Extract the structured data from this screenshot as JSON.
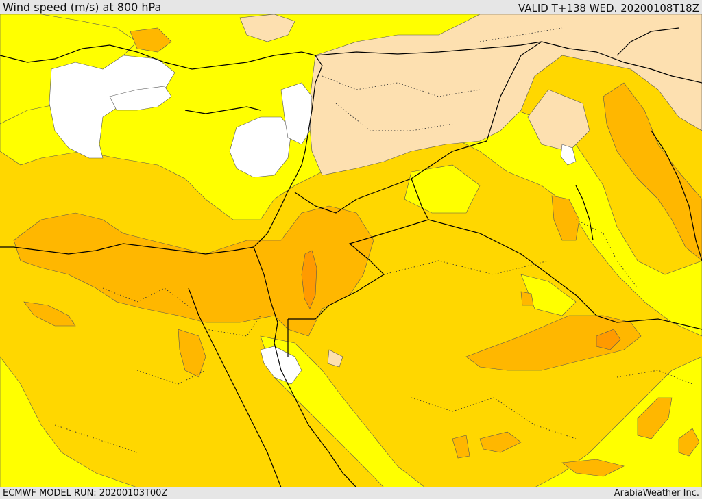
{
  "header": {
    "title": "Wind speed (m/s) at 800 hPa",
    "valid_time": "VALID T+138 WED. 20200108T18Z"
  },
  "footer": {
    "model_run": "ECMWF MODEL RUN: 20200103T00Z",
    "credit": "ArabiaWeather Inc."
  },
  "map": {
    "palette": {
      "calm": "#ffffff",
      "light": "#fde0b0",
      "moderate_low": "#ffff00",
      "moderate": "#ffd700",
      "strong": "#ffb700",
      "very_strong": "#ff9a00",
      "border": "#000000"
    }
  }
}
